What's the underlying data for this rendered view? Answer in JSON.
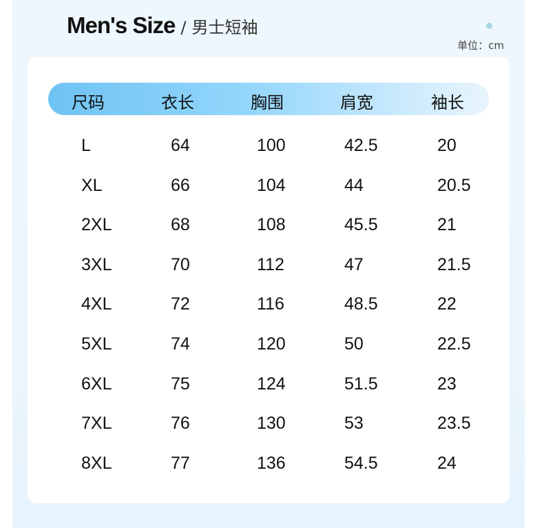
{
  "title": {
    "en": "Men's Size",
    "separator": "/",
    "cn": "男士短袖"
  },
  "unit": "单位：cm",
  "columns": [
    "尺码",
    "衣长",
    "胸围",
    "肩宽",
    "袖长"
  ],
  "rows": [
    [
      "L",
      "64",
      "100",
      "42.5",
      "20"
    ],
    [
      "XL",
      "66",
      "104",
      "44",
      "20.5"
    ],
    [
      "2XL",
      "68",
      "108",
      "45.5",
      "21"
    ],
    [
      "3XL",
      "70",
      "112",
      "47",
      "21.5"
    ],
    [
      "4XL",
      "72",
      "116",
      "48.5",
      "22"
    ],
    [
      "5XL",
      "74",
      "120",
      "50",
      "22.5"
    ],
    [
      "6XL",
      "75",
      "124",
      "51.5",
      "23"
    ],
    [
      "7XL",
      "76",
      "130",
      "53",
      "23.5"
    ],
    [
      "8XL",
      "77",
      "136",
      "54.5",
      "24"
    ]
  ],
  "colors": {
    "panel": "#eaf5fd",
    "header_start": "#6ec3f3",
    "header_end": "#e9f5fd",
    "dot": "#a9d7e6"
  }
}
